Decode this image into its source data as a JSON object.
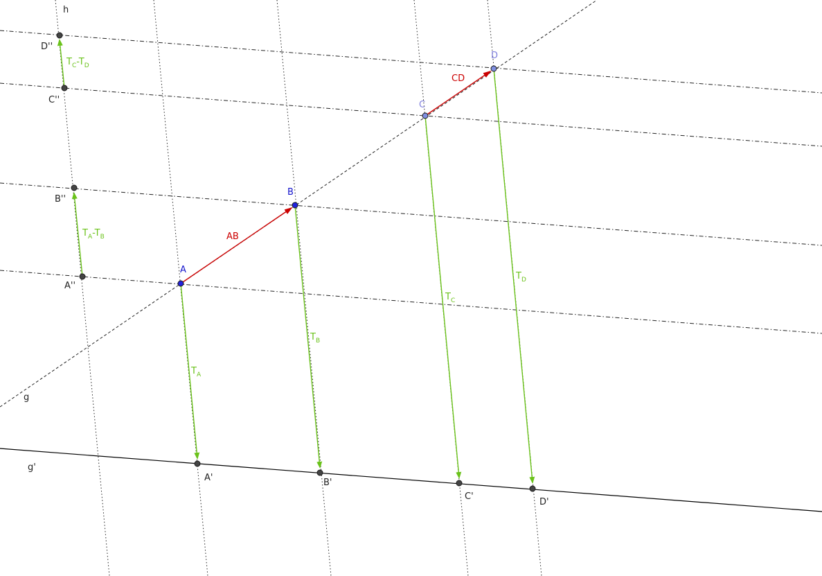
{
  "colors": {
    "line": "#000000",
    "green": "#6ac21a",
    "red": "#cc0000",
    "blue": "#1414cc",
    "lightblue": "#8080dd",
    "point_gray": "#444444",
    "point_blue": "#2222dd",
    "point_lightblue": "#7f8fe0"
  },
  "lines": {
    "g": "g",
    "g_prime": "g'",
    "h": "h"
  },
  "points": {
    "A": "A",
    "B": "B",
    "C": "C",
    "D": "D",
    "A_prime": "A'",
    "B_prime": "B'",
    "C_prime": "C'",
    "D_prime": "D'",
    "A_dd": "A''",
    "B_dd": "B''",
    "C_dd": "C''",
    "D_dd": "D''"
  },
  "vectors": {
    "AB": "AB",
    "CD": "CD",
    "TA": {
      "base": "T",
      "sub": "A"
    },
    "TB": {
      "base": "T",
      "sub": "B"
    },
    "TC": {
      "base": "T",
      "sub": "C"
    },
    "TD": {
      "base": "T",
      "sub": "D"
    },
    "TA_TB": {
      "t1": "T",
      "s1": "A",
      "op": "-",
      "t2": "T",
      "s2": "B"
    },
    "TC_TD": {
      "t1": "T",
      "s1": "C",
      "op": "-",
      "t2": "T",
      "s2": "D"
    }
  }
}
